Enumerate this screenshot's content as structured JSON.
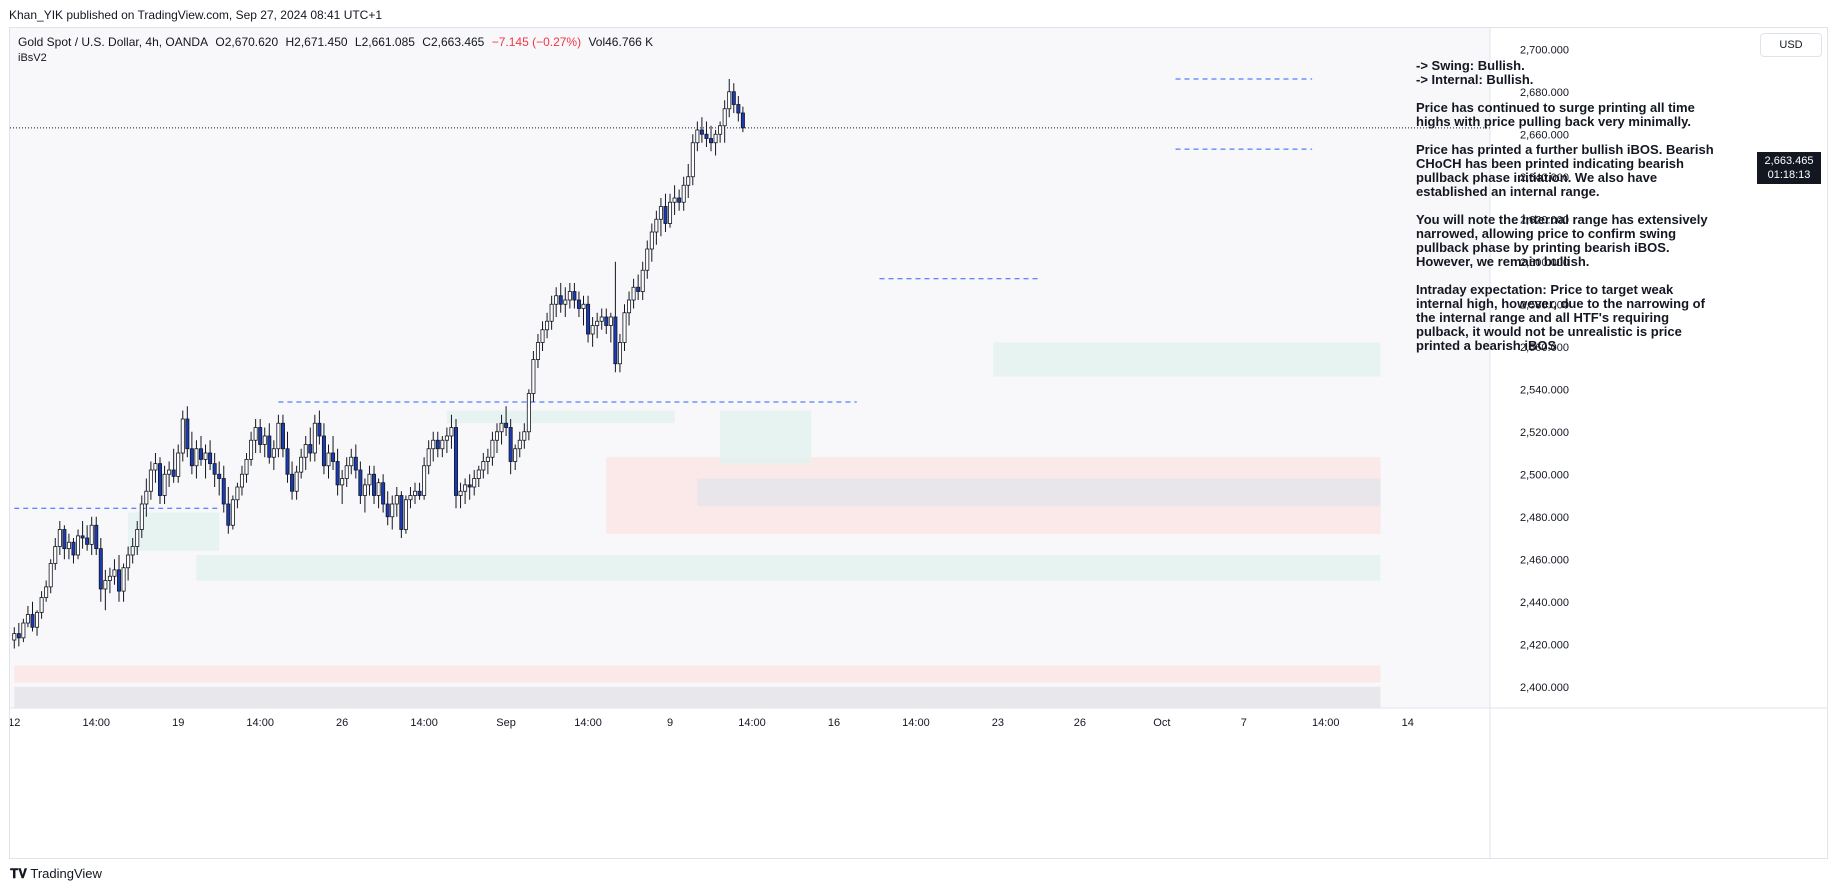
{
  "header": {
    "publisher_line": "Khan_YIK published on TradingView.com, Sep 27, 2024 08:41 UTC+1"
  },
  "legend": {
    "symbol": "Gold Spot / U.S. Dollar, 4h, OANDA",
    "open": "O2,670.620",
    "high": "H2,671.450",
    "low": "L2,661.085",
    "close": "C2,663.465",
    "change": "−7.145 (−0.27%)",
    "volume": "Vol46.766 K",
    "indicator": "iBsV2"
  },
  "currency_button": "USD",
  "current_price": {
    "value": "2,663.465",
    "countdown": "01:18:13"
  },
  "notes": [
    "-> Swing:  Bullish.\n-> Internal:  Bullish.",
    "Price has continued to surge printing all time highs with price pulling back very minimally.",
    "Price has printed a further bullish iBOS. Bearish CHoCH has been printed indicating bearish pullback phase initiation.  We also have established an internal range.",
    "You will note the internal range has extensively narrowed, allowing price to confirm swing pullback phase by printing bearish iBOS. However, we remain bullish.",
    "Intraday expectation:  Price to target weak internal high, however, due to the narrowing of the internal range and all HTF's requiring pulback, it would not be unrealistic is price printed a bearish iBOS"
  ],
  "footer": {
    "brand": "TradingView"
  },
  "colors": {
    "bull": "#ffffff",
    "bear": "#1b3bb5",
    "wick": "#131722",
    "dash": "#2962ff",
    "zone_green": "#e3f2ef",
    "zone_red": "#fbe5e7",
    "zone_grey": "#e5e6ea"
  },
  "chart_data": {
    "type": "candlestick",
    "y_ticks": [
      "2,700.000",
      "2,680.000",
      "2,660.000",
      "2,640.000",
      "2,620.000",
      "2,600.000",
      "2,580.000",
      "2,560.000",
      "2,540.000",
      "2,520.000",
      "2,500.000",
      "2,480.000",
      "2,460.000",
      "2,440.000",
      "2,420.000",
      "2,400.000"
    ],
    "y_tick_values": [
      2700,
      2680,
      2660,
      2640,
      2620,
      2600,
      2580,
      2560,
      2540,
      2520,
      2500,
      2480,
      2460,
      2440,
      2420,
      2400
    ],
    "ylim": [
      2390,
      2710
    ],
    "x_ticks": [
      "12",
      "14:00",
      "19",
      "14:00",
      "26",
      "14:00",
      "Sep",
      "14:00",
      "9",
      "14:00",
      "16",
      "14:00",
      "23",
      "26",
      "Oct",
      "7",
      "14:00",
      "14"
    ],
    "x_tick_bars": [
      0,
      18,
      36,
      54,
      72,
      90,
      108,
      126,
      144,
      162,
      180,
      198,
      216,
      234,
      252,
      270,
      288,
      306
    ],
    "bars_total": 325,
    "candles": [
      [
        2422,
        2428,
        2418,
        2425
      ],
      [
        2425,
        2430,
        2419,
        2423
      ],
      [
        2423,
        2432,
        2421,
        2430
      ],
      [
        2430,
        2438,
        2428,
        2434
      ],
      [
        2434,
        2440,
        2426,
        2428
      ],
      [
        2428,
        2436,
        2424,
        2435
      ],
      [
        2435,
        2445,
        2432,
        2442
      ],
      [
        2442,
        2450,
        2440,
        2447
      ],
      [
        2447,
        2460,
        2444,
        2458
      ],
      [
        2458,
        2470,
        2455,
        2466
      ],
      [
        2466,
        2478,
        2462,
        2474
      ],
      [
        2474,
        2476,
        2460,
        2465
      ],
      [
        2465,
        2472,
        2460,
        2468
      ],
      [
        2468,
        2470,
        2458,
        2462
      ],
      [
        2462,
        2474,
        2460,
        2471
      ],
      [
        2471,
        2478,
        2465,
        2470
      ],
      [
        2470,
        2476,
        2464,
        2467
      ],
      [
        2467,
        2480,
        2462,
        2476
      ],
      [
        2476,
        2480,
        2462,
        2465
      ],
      [
        2465,
        2470,
        2440,
        2446
      ],
      [
        2446,
        2455,
        2436,
        2450
      ],
      [
        2450,
        2456,
        2444,
        2452
      ],
      [
        2452,
        2460,
        2448,
        2455
      ],
      [
        2455,
        2462,
        2440,
        2445
      ],
      [
        2445,
        2458,
        2440,
        2456
      ],
      [
        2456,
        2466,
        2450,
        2462
      ],
      [
        2462,
        2470,
        2458,
        2466
      ],
      [
        2466,
        2478,
        2462,
        2474
      ],
      [
        2474,
        2490,
        2470,
        2486
      ],
      [
        2486,
        2498,
        2480,
        2492
      ],
      [
        2492,
        2506,
        2488,
        2502
      ],
      [
        2502,
        2510,
        2496,
        2505
      ],
      [
        2505,
        2508,
        2486,
        2490
      ],
      [
        2490,
        2504,
        2486,
        2500
      ],
      [
        2500,
        2506,
        2494,
        2502
      ],
      [
        2502,
        2512,
        2496,
        2499
      ],
      [
        2499,
        2514,
        2496,
        2510
      ],
      [
        2510,
        2530,
        2506,
        2526
      ],
      [
        2526,
        2532,
        2508,
        2512
      ],
      [
        2512,
        2520,
        2500,
        2504
      ],
      [
        2504,
        2516,
        2498,
        2512
      ],
      [
        2512,
        2518,
        2504,
        2507
      ],
      [
        2507,
        2514,
        2498,
        2510
      ],
      [
        2510,
        2516,
        2502,
        2505
      ],
      [
        2505,
        2510,
        2494,
        2500
      ],
      [
        2500,
        2506,
        2490,
        2498
      ],
      [
        2498,
        2504,
        2482,
        2486
      ],
      [
        2486,
        2494,
        2472,
        2476
      ],
      [
        2476,
        2490,
        2474,
        2488
      ],
      [
        2488,
        2496,
        2484,
        2494
      ],
      [
        2494,
        2504,
        2490,
        2500
      ],
      [
        2500,
        2510,
        2496,
        2507
      ],
      [
        2507,
        2520,
        2504,
        2516
      ],
      [
        2516,
        2526,
        2510,
        2522
      ],
      [
        2522,
        2526,
        2510,
        2514
      ],
      [
        2514,
        2522,
        2508,
        2518
      ],
      [
        2518,
        2524,
        2505,
        2508
      ],
      [
        2508,
        2516,
        2502,
        2512
      ],
      [
        2512,
        2528,
        2508,
        2524
      ],
      [
        2524,
        2528,
        2508,
        2512
      ],
      [
        2512,
        2520,
        2496,
        2500
      ],
      [
        2500,
        2506,
        2488,
        2492
      ],
      [
        2492,
        2504,
        2488,
        2501
      ],
      [
        2501,
        2512,
        2498,
        2508
      ],
      [
        2508,
        2518,
        2502,
        2514
      ],
      [
        2514,
        2522,
        2506,
        2510
      ],
      [
        2510,
        2528,
        2506,
        2524
      ],
      [
        2524,
        2530,
        2514,
        2518
      ],
      [
        2518,
        2524,
        2500,
        2504
      ],
      [
        2504,
        2514,
        2498,
        2510
      ],
      [
        2510,
        2518,
        2502,
        2506
      ],
      [
        2506,
        2512,
        2490,
        2495
      ],
      [
        2495,
        2502,
        2486,
        2498
      ],
      [
        2498,
        2508,
        2494,
        2504
      ],
      [
        2504,
        2512,
        2500,
        2508
      ],
      [
        2508,
        2514,
        2498,
        2502
      ],
      [
        2502,
        2506,
        2486,
        2490
      ],
      [
        2490,
        2498,
        2482,
        2495
      ],
      [
        2495,
        2504,
        2490,
        2500
      ],
      [
        2500,
        2504,
        2486,
        2490
      ],
      [
        2490,
        2498,
        2484,
        2496
      ],
      [
        2496,
        2500,
        2482,
        2486
      ],
      [
        2486,
        2492,
        2476,
        2480
      ],
      [
        2480,
        2490,
        2474,
        2486
      ],
      [
        2486,
        2494,
        2480,
        2490
      ],
      [
        2490,
        2492,
        2470,
        2474
      ],
      [
        2474,
        2490,
        2472,
        2488
      ],
      [
        2488,
        2494,
        2484,
        2490
      ],
      [
        2490,
        2496,
        2486,
        2492
      ],
      [
        2492,
        2496,
        2488,
        2490
      ],
      [
        2490,
        2508,
        2488,
        2504
      ],
      [
        2504,
        2516,
        2500,
        2512
      ],
      [
        2512,
        2520,
        2506,
        2516
      ],
      [
        2516,
        2520,
        2508,
        2512
      ],
      [
        2512,
        2518,
        2508,
        2516
      ],
      [
        2516,
        2522,
        2510,
        2518
      ],
      [
        2518,
        2528,
        2512,
        2522
      ],
      [
        2522,
        2526,
        2484,
        2490
      ],
      [
        2490,
        2496,
        2484,
        2492
      ],
      [
        2492,
        2498,
        2486,
        2495
      ],
      [
        2495,
        2500,
        2488,
        2494
      ],
      [
        2494,
        2502,
        2490,
        2498
      ],
      [
        2498,
        2504,
        2494,
        2502
      ],
      [
        2502,
        2510,
        2498,
        2506
      ],
      [
        2506,
        2512,
        2500,
        2508
      ],
      [
        2508,
        2520,
        2504,
        2516
      ],
      [
        2516,
        2524,
        2510,
        2520
      ],
      [
        2520,
        2528,
        2514,
        2524
      ],
      [
        2524,
        2532,
        2518,
        2522
      ],
      [
        2522,
        2526,
        2500,
        2506
      ],
      [
        2506,
        2514,
        2502,
        2512
      ],
      [
        2512,
        2520,
        2508,
        2516
      ],
      [
        2516,
        2524,
        2512,
        2520
      ],
      [
        2520,
        2540,
        2516,
        2538
      ],
      [
        2538,
        2558,
        2534,
        2554
      ],
      [
        2554,
        2566,
        2550,
        2562
      ],
      [
        2562,
        2572,
        2558,
        2568
      ],
      [
        2568,
        2576,
        2564,
        2572
      ],
      [
        2572,
        2584,
        2568,
        2580
      ],
      [
        2580,
        2588,
        2574,
        2584
      ],
      [
        2584,
        2590,
        2576,
        2580
      ],
      [
        2580,
        2588,
        2574,
        2582
      ],
      [
        2582,
        2590,
        2578,
        2586
      ],
      [
        2586,
        2590,
        2578,
        2582
      ],
      [
        2582,
        2586,
        2574,
        2578
      ],
      [
        2578,
        2584,
        2570,
        2580
      ],
      [
        2580,
        2584,
        2562,
        2566
      ],
      [
        2566,
        2574,
        2560,
        2570
      ],
      [
        2570,
        2576,
        2564,
        2572
      ],
      [
        2572,
        2578,
        2568,
        2574
      ],
      [
        2574,
        2578,
        2566,
        2570
      ],
      [
        2570,
        2576,
        2562,
        2574
      ],
      [
        2574,
        2600,
        2548,
        2552
      ],
      [
        2552,
        2566,
        2548,
        2562
      ],
      [
        2562,
        2580,
        2558,
        2576
      ],
      [
        2576,
        2586,
        2570,
        2582
      ],
      [
        2582,
        2592,
        2578,
        2588
      ],
      [
        2588,
        2594,
        2582,
        2586
      ],
      [
        2586,
        2600,
        2582,
        2596
      ],
      [
        2596,
        2610,
        2592,
        2606
      ],
      [
        2606,
        2618,
        2600,
        2614
      ],
      [
        2614,
        2624,
        2608,
        2620
      ],
      [
        2620,
        2630,
        2612,
        2626
      ],
      [
        2626,
        2632,
        2614,
        2618
      ],
      [
        2618,
        2632,
        2616,
        2628
      ],
      [
        2628,
        2636,
        2622,
        2630
      ],
      [
        2630,
        2634,
        2624,
        2628
      ],
      [
        2628,
        2640,
        2624,
        2636
      ],
      [
        2636,
        2646,
        2630,
        2640
      ],
      [
        2640,
        2660,
        2636,
        2656
      ],
      [
        2656,
        2666,
        2652,
        2662
      ],
      [
        2662,
        2668,
        2656,
        2660
      ],
      [
        2660,
        2666,
        2654,
        2658
      ],
      [
        2658,
        2664,
        2652,
        2656
      ],
      [
        2656,
        2662,
        2650,
        2660
      ],
      [
        2660,
        2666,
        2656,
        2664
      ],
      [
        2664,
        2676,
        2656,
        2672
      ],
      [
        2672,
        2686,
        2668,
        2680
      ],
      [
        2680,
        2684,
        2670,
        2674
      ],
      [
        2674,
        2678,
        2666,
        2670
      ],
      [
        2670,
        2673,
        2661,
        2663
      ]
    ]
  }
}
